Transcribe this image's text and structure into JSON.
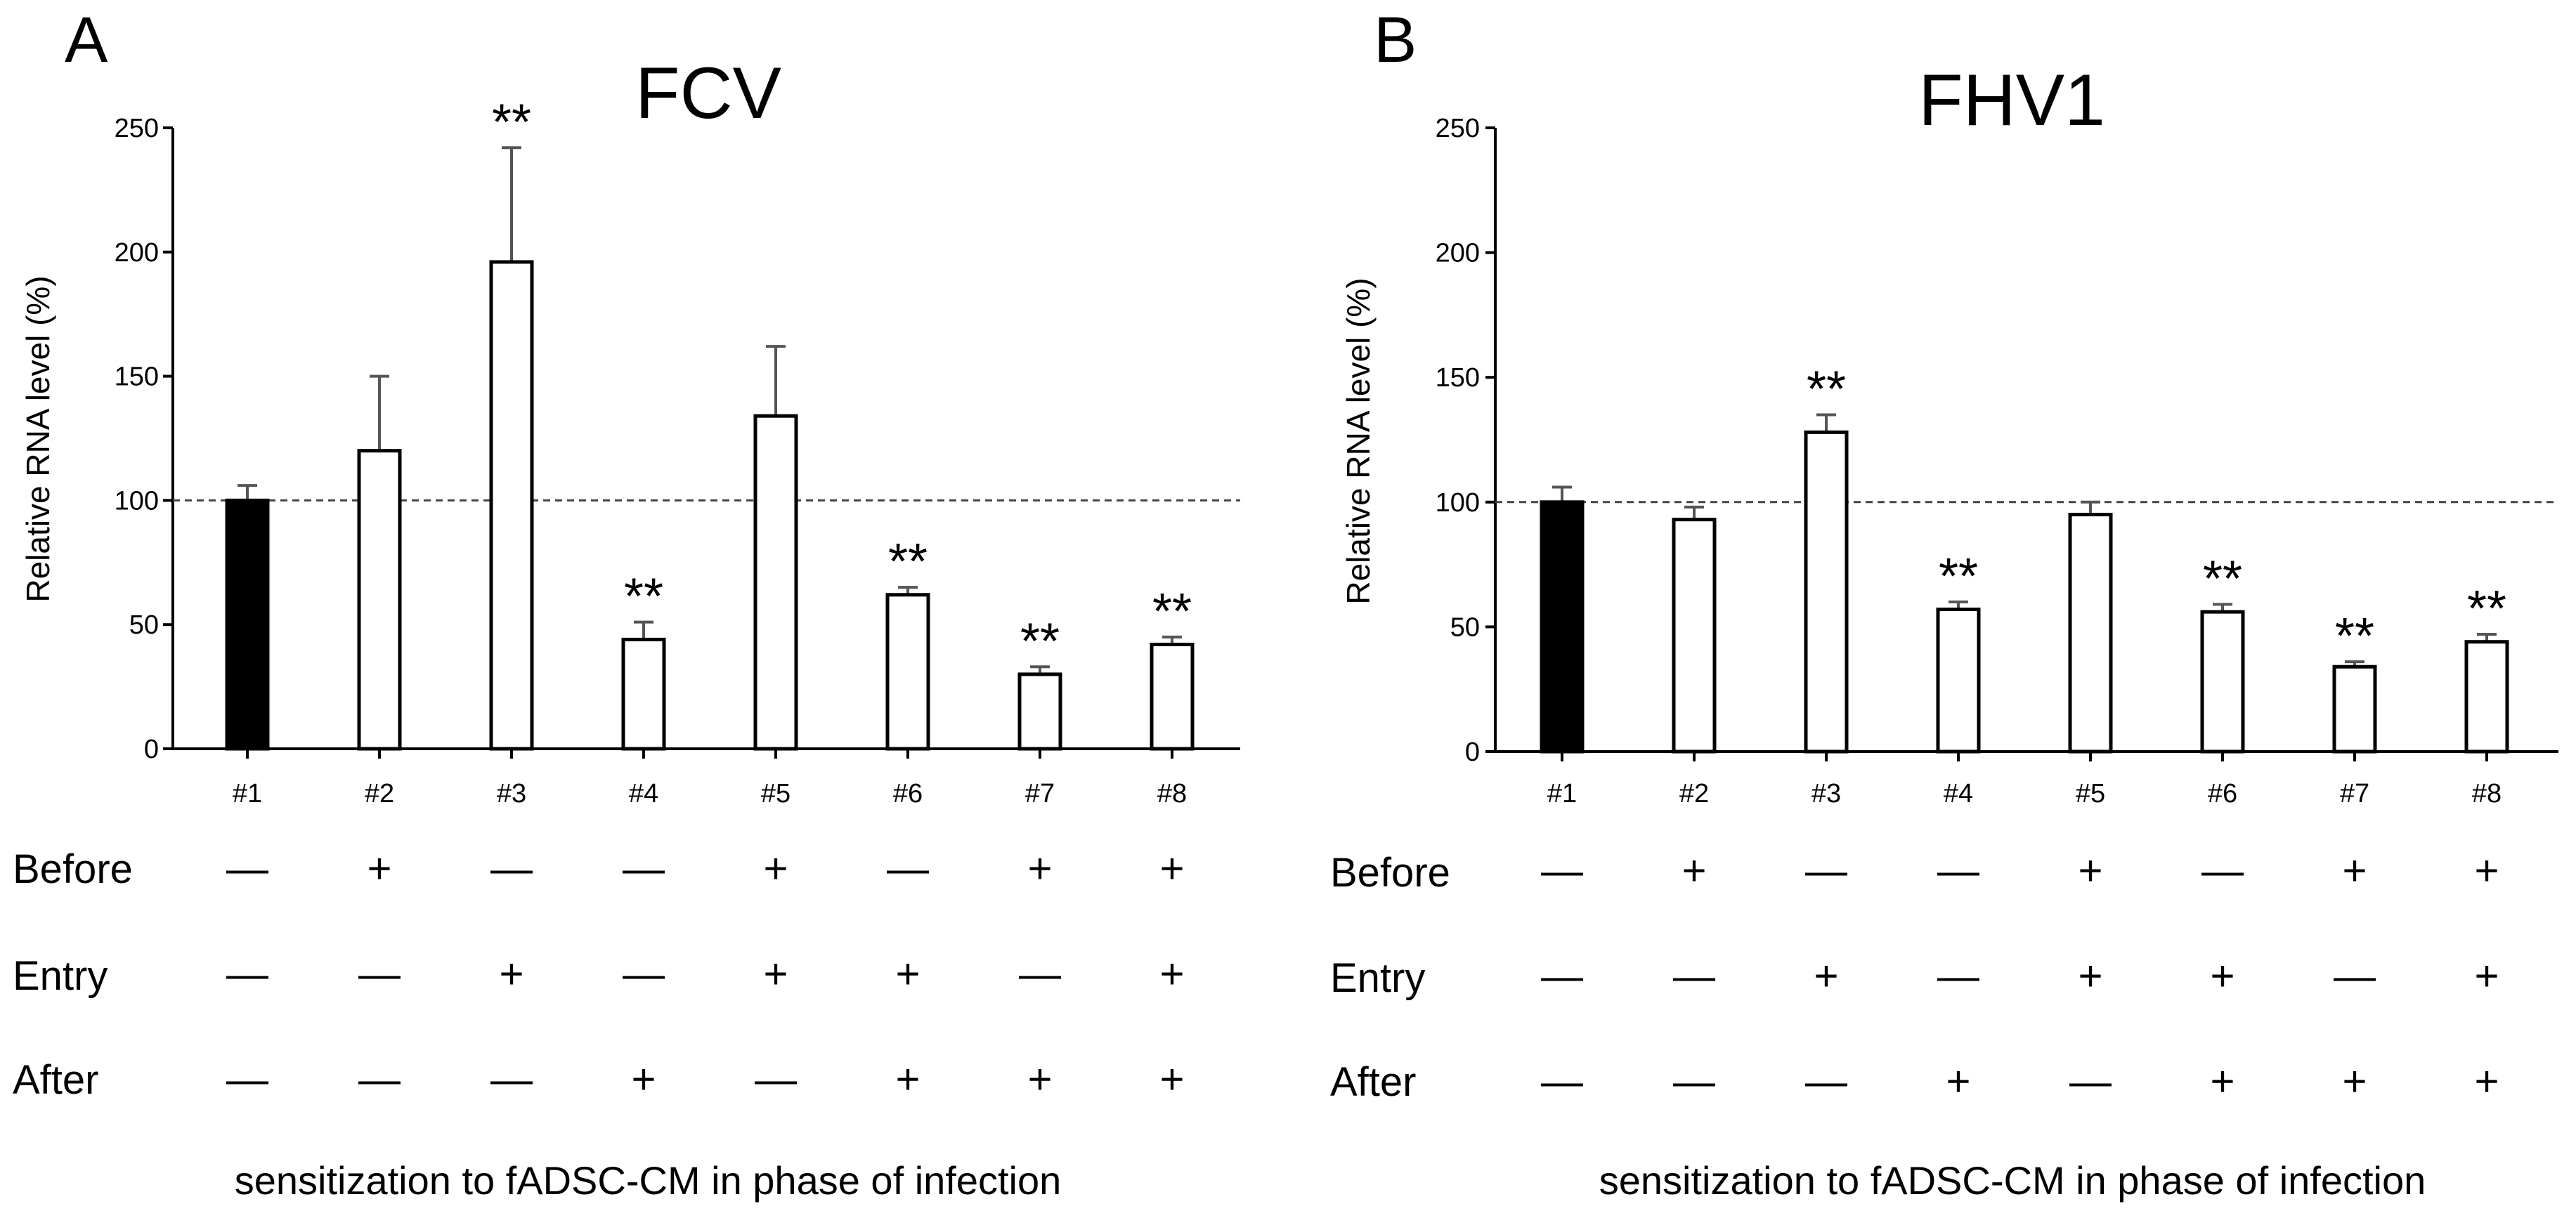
{
  "colors": {
    "axis": "#000000",
    "control_bar": "#000000",
    "bar_fill": "#ffffff",
    "bar_edge": "#000000",
    "error_bar": "#555555",
    "reference_line": "#444444"
  },
  "chart_data": [
    {
      "panel": "A",
      "type": "bar",
      "title": "FCV",
      "ylabel": "Relative RNA level (%)",
      "xlabel": "sensitization to fADSC-CM in phase of infection",
      "ylim": [
        0,
        250
      ],
      "yticks": [
        0,
        50,
        100,
        150,
        200,
        250
      ],
      "reference_line": 100,
      "categories": [
        "#1",
        "#2",
        "#3",
        "#4",
        "#5",
        "#6",
        "#7",
        "#8"
      ],
      "values": [
        100,
        120,
        196,
        44,
        134,
        62,
        30,
        42
      ],
      "errors": [
        6,
        30,
        46,
        7,
        28,
        3,
        3,
        3
      ],
      "significance": [
        "",
        "",
        "**",
        "**",
        "",
        "**",
        "**",
        "**"
      ],
      "filled": [
        true,
        false,
        false,
        false,
        false,
        false,
        false,
        false
      ],
      "conditions": [
        {
          "name": "Before",
          "marks": [
            "—",
            "+",
            "—",
            "—",
            "+",
            "—",
            "+",
            "+"
          ]
        },
        {
          "name": "Entry",
          "marks": [
            "—",
            "—",
            "+",
            "—",
            "+",
            "+",
            "—",
            "+"
          ]
        },
        {
          "name": "After",
          "marks": [
            "—",
            "—",
            "—",
            "+",
            "—",
            "+",
            "+",
            "+"
          ]
        }
      ]
    },
    {
      "panel": "B",
      "type": "bar",
      "title": "FHV1",
      "ylabel": "Relative RNA level (%)",
      "xlabel": "sensitization to fADSC-CM in phase of infection",
      "ylim": [
        0,
        250
      ],
      "yticks": [
        0,
        50,
        100,
        150,
        200,
        250
      ],
      "reference_line": 100,
      "categories": [
        "#1",
        "#2",
        "#3",
        "#4",
        "#5",
        "#6",
        "#7",
        "#8"
      ],
      "values": [
        100,
        93,
        128,
        57,
        95,
        56,
        34,
        44
      ],
      "errors": [
        6,
        5,
        7,
        3,
        5,
        3,
        2,
        3
      ],
      "significance": [
        "",
        "",
        "**",
        "**",
        "",
        "**",
        "**",
        "**"
      ],
      "filled": [
        true,
        false,
        false,
        false,
        false,
        false,
        false,
        false
      ],
      "conditions": [
        {
          "name": "Before",
          "marks": [
            "—",
            "+",
            "—",
            "—",
            "+",
            "—",
            "+",
            "+"
          ]
        },
        {
          "name": "Entry",
          "marks": [
            "—",
            "—",
            "+",
            "—",
            "+",
            "+",
            "—",
            "+"
          ]
        },
        {
          "name": "After",
          "marks": [
            "—",
            "—",
            "—",
            "+",
            "—",
            "+",
            "+",
            "+"
          ]
        }
      ]
    }
  ]
}
